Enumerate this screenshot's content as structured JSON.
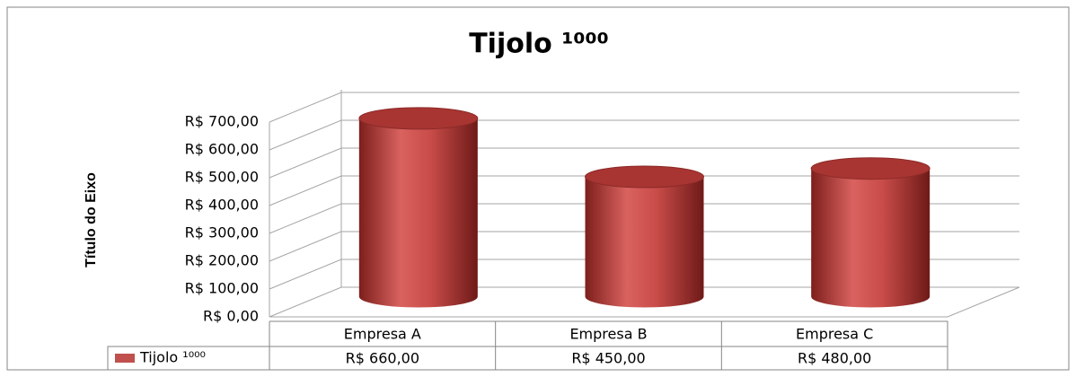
{
  "chart_data": {
    "type": "bar3d",
    "title": "Tijolo ¹⁰⁰⁰",
    "y_axis_label": "Título do Eixo",
    "categories": [
      "Empresa A",
      "Empresa B",
      "Empresa C"
    ],
    "series": [
      {
        "name": "Tijolo ¹⁰⁰⁰",
        "color": "#c0504d",
        "values": [
          660,
          450,
          480
        ],
        "value_labels": [
          "R$ 660,00",
          "R$ 450,00",
          "R$ 480,00"
        ]
      }
    ],
    "ylim": [
      0,
      700
    ],
    "yticks": [
      {
        "value": 0,
        "label": "R$ 0,00"
      },
      {
        "value": 100,
        "label": "R$ 100,00"
      },
      {
        "value": 200,
        "label": "R$ 200,00"
      },
      {
        "value": 300,
        "label": "R$ 300,00"
      },
      {
        "value": 400,
        "label": "R$ 400,00"
      },
      {
        "value": 500,
        "label": "R$ 500,00"
      },
      {
        "value": 600,
        "label": "R$ 600,00"
      },
      {
        "value": 700,
        "label": "R$ 700,00"
      }
    ],
    "grid": true
  }
}
